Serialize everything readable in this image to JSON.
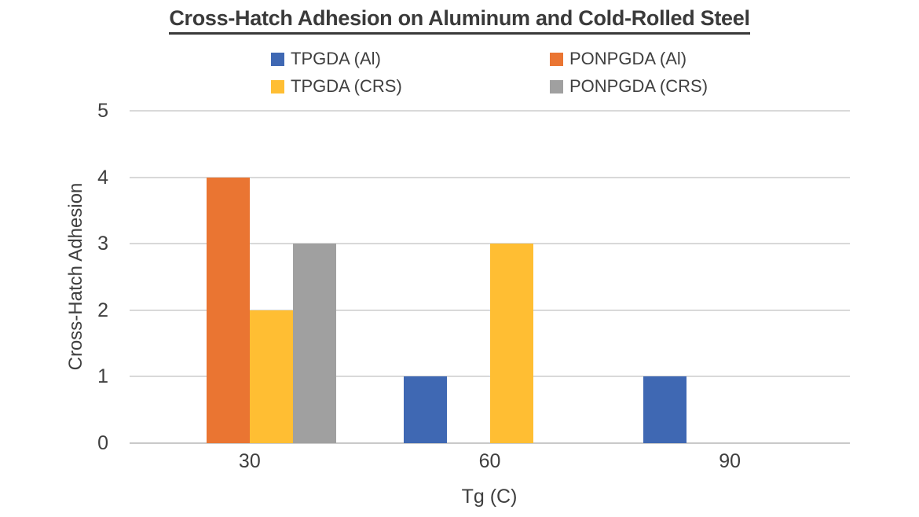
{
  "chart_data": {
    "type": "bar",
    "title": "Cross-Hatch Adhesion on Aluminum and Cold-Rolled Steel",
    "categories": [
      "30",
      "60",
      "90"
    ],
    "series": [
      {
        "name": "TPGDA (Al)",
        "color": "#3F68B3",
        "values": [
          0,
          1,
          1
        ]
      },
      {
        "name": "PONPGDA (Al)",
        "color": "#EA7532",
        "values": [
          4,
          0,
          0
        ]
      },
      {
        "name": "TPGDA (CRS)",
        "color": "#FFBE33",
        "values": [
          2,
          3,
          0
        ]
      },
      {
        "name": "PONPGDA (CRS)",
        "color": "#A0A0A0",
        "values": [
          3,
          0,
          0
        ]
      }
    ],
    "xlabel": "Tg (C)",
    "ylabel": "Cross-Hatch Adhesion",
    "ylim": [
      0,
      5
    ],
    "yticks": [
      0,
      1,
      2,
      3,
      4,
      5
    ],
    "grid": true,
    "legend_position": "top",
    "colors": {
      "title_text": "#3a3a3a",
      "axis_text": "#3f3f3f",
      "gridline": "#d9d9d9"
    }
  }
}
